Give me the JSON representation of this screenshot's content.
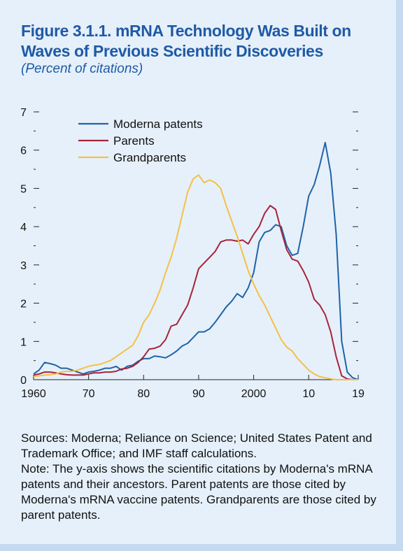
{
  "title": {
    "line1": "Figure 3.1.1.  mRNA Technology Was Built on",
    "line2": "Waves of Previous Scientific Discoveries"
  },
  "subtitle": "(Percent of citations)",
  "notes": {
    "sources": "Sources: Moderna; Reliance on Science; United States Patent and Trademark Office; and IMF staff calculations.",
    "note": "Note: The y-axis shows the scientific citations by Moderna's mRNA patents and their ancestors. Parent patents are those cited by Moderna's mRNA vaccine patents. Grandparents are those cited by parent patents."
  },
  "colors": {
    "moderna": "#1f63a8",
    "parents": "#a8243a",
    "grandparents": "#f4c048",
    "axis": "#222222",
    "title": "#1f5aa6"
  },
  "chart_data": {
    "type": "line",
    "title": "mRNA Technology Was Built on Waves of Previous Scientific Discoveries",
    "ylabel": "Percent of citations",
    "xlabel": "",
    "xlim": [
      1960,
      2019
    ],
    "ylim": [
      0,
      7
    ],
    "x_ticks": [
      {
        "value": 1960,
        "label": "1960"
      },
      {
        "value": 1970,
        "label": "70"
      },
      {
        "value": 1980,
        "label": "80"
      },
      {
        "value": 1990,
        "label": "90"
      },
      {
        "value": 2000,
        "label": "2000"
      },
      {
        "value": 2010,
        "label": "10"
      },
      {
        "value": 2019,
        "label": "19"
      }
    ],
    "y_ticks": [
      0,
      1,
      2,
      3,
      4,
      5,
      6,
      7
    ],
    "legend_position": "top-left",
    "series": [
      {
        "name": "Moderna patents",
        "color_key": "moderna",
        "points": [
          [
            1960,
            0.15
          ],
          [
            1961,
            0.25
          ],
          [
            1962,
            0.45
          ],
          [
            1963,
            0.42
          ],
          [
            1964,
            0.38
          ],
          [
            1965,
            0.3
          ],
          [
            1966,
            0.3
          ],
          [
            1967,
            0.25
          ],
          [
            1968,
            0.2
          ],
          [
            1969,
            0.15
          ],
          [
            1970,
            0.2
          ],
          [
            1971,
            0.22
          ],
          [
            1972,
            0.25
          ],
          [
            1973,
            0.3
          ],
          [
            1974,
            0.3
          ],
          [
            1975,
            0.35
          ],
          [
            1976,
            0.25
          ],
          [
            1977,
            0.35
          ],
          [
            1978,
            0.38
          ],
          [
            1979,
            0.48
          ],
          [
            1980,
            0.55
          ],
          [
            1981,
            0.55
          ],
          [
            1982,
            0.62
          ],
          [
            1983,
            0.6
          ],
          [
            1984,
            0.57
          ],
          [
            1985,
            0.65
          ],
          [
            1986,
            0.75
          ],
          [
            1987,
            0.88
          ],
          [
            1988,
            0.95
          ],
          [
            1989,
            1.1
          ],
          [
            1990,
            1.25
          ],
          [
            1991,
            1.25
          ],
          [
            1992,
            1.33
          ],
          [
            1993,
            1.5
          ],
          [
            1994,
            1.7
          ],
          [
            1995,
            1.9
          ],
          [
            1996,
            2.05
          ],
          [
            1997,
            2.25
          ],
          [
            1998,
            2.15
          ],
          [
            1999,
            2.4
          ],
          [
            2000,
            2.8
          ],
          [
            2001,
            3.6
          ],
          [
            2002,
            3.85
          ],
          [
            2003,
            3.9
          ],
          [
            2004,
            4.05
          ],
          [
            2005,
            4.0
          ],
          [
            2006,
            3.5
          ],
          [
            2007,
            3.25
          ],
          [
            2008,
            3.3
          ],
          [
            2009,
            4.0
          ],
          [
            2010,
            4.8
          ],
          [
            2011,
            5.1
          ],
          [
            2012,
            5.6
          ],
          [
            2013,
            6.2
          ],
          [
            2014,
            5.4
          ],
          [
            2015,
            3.8
          ],
          [
            2016,
            1.0
          ],
          [
            2017,
            0.2
          ],
          [
            2018,
            0.05
          ],
          [
            2019,
            0.0
          ]
        ]
      },
      {
        "name": "Parents",
        "color_key": "parents",
        "points": [
          [
            1960,
            0.12
          ],
          [
            1961,
            0.15
          ],
          [
            1962,
            0.2
          ],
          [
            1963,
            0.2
          ],
          [
            1964,
            0.18
          ],
          [
            1965,
            0.15
          ],
          [
            1966,
            0.13
          ],
          [
            1967,
            0.12
          ],
          [
            1968,
            0.12
          ],
          [
            1969,
            0.12
          ],
          [
            1970,
            0.15
          ],
          [
            1971,
            0.18
          ],
          [
            1972,
            0.18
          ],
          [
            1973,
            0.2
          ],
          [
            1974,
            0.2
          ],
          [
            1975,
            0.22
          ],
          [
            1976,
            0.28
          ],
          [
            1977,
            0.3
          ],
          [
            1978,
            0.35
          ],
          [
            1979,
            0.45
          ],
          [
            1980,
            0.6
          ],
          [
            1981,
            0.8
          ],
          [
            1982,
            0.82
          ],
          [
            1983,
            0.88
          ],
          [
            1984,
            1.05
          ],
          [
            1985,
            1.4
          ],
          [
            1986,
            1.45
          ],
          [
            1987,
            1.7
          ],
          [
            1988,
            1.95
          ],
          [
            1989,
            2.4
          ],
          [
            1990,
            2.9
          ],
          [
            1991,
            3.05
          ],
          [
            1992,
            3.2
          ],
          [
            1993,
            3.35
          ],
          [
            1994,
            3.6
          ],
          [
            1995,
            3.65
          ],
          [
            1996,
            3.65
          ],
          [
            1997,
            3.62
          ],
          [
            1998,
            3.65
          ],
          [
            1999,
            3.55
          ],
          [
            2000,
            3.8
          ],
          [
            2001,
            4.0
          ],
          [
            2002,
            4.35
          ],
          [
            2003,
            4.55
          ],
          [
            2004,
            4.45
          ],
          [
            2005,
            3.9
          ],
          [
            2006,
            3.4
          ],
          [
            2007,
            3.15
          ],
          [
            2008,
            3.1
          ],
          [
            2009,
            2.85
          ],
          [
            2010,
            2.55
          ],
          [
            2011,
            2.1
          ],
          [
            2012,
            1.95
          ],
          [
            2013,
            1.7
          ],
          [
            2014,
            1.25
          ],
          [
            2015,
            0.6
          ],
          [
            2016,
            0.1
          ],
          [
            2017,
            0.02
          ],
          [
            2018,
            0.0
          ],
          [
            2019,
            0.0
          ]
        ]
      },
      {
        "name": "Grandparents",
        "color_key": "grandparents",
        "points": [
          [
            1960,
            0.08
          ],
          [
            1961,
            0.1
          ],
          [
            1962,
            0.12
          ],
          [
            1963,
            0.13
          ],
          [
            1964,
            0.15
          ],
          [
            1965,
            0.2
          ],
          [
            1966,
            0.22
          ],
          [
            1967,
            0.22
          ],
          [
            1968,
            0.25
          ],
          [
            1969,
            0.3
          ],
          [
            1970,
            0.35
          ],
          [
            1971,
            0.38
          ],
          [
            1972,
            0.4
          ],
          [
            1973,
            0.45
          ],
          [
            1974,
            0.5
          ],
          [
            1975,
            0.6
          ],
          [
            1976,
            0.7
          ],
          [
            1977,
            0.8
          ],
          [
            1978,
            0.9
          ],
          [
            1979,
            1.15
          ],
          [
            1980,
            1.5
          ],
          [
            1981,
            1.7
          ],
          [
            1982,
            2.0
          ],
          [
            1983,
            2.35
          ],
          [
            1984,
            2.8
          ],
          [
            1985,
            3.2
          ],
          [
            1986,
            3.7
          ],
          [
            1987,
            4.3
          ],
          [
            1988,
            4.9
          ],
          [
            1989,
            5.25
          ],
          [
            1990,
            5.35
          ],
          [
            1991,
            5.15
          ],
          [
            1992,
            5.22
          ],
          [
            1993,
            5.15
          ],
          [
            1994,
            5.0
          ],
          [
            1995,
            4.55
          ],
          [
            1996,
            4.15
          ],
          [
            1997,
            3.75
          ],
          [
            1998,
            3.3
          ],
          [
            1999,
            2.85
          ],
          [
            2000,
            2.5
          ],
          [
            2001,
            2.2
          ],
          [
            2002,
            1.95
          ],
          [
            2003,
            1.65
          ],
          [
            2004,
            1.35
          ],
          [
            2005,
            1.05
          ],
          [
            2006,
            0.85
          ],
          [
            2007,
            0.75
          ],
          [
            2008,
            0.55
          ],
          [
            2009,
            0.4
          ],
          [
            2010,
            0.25
          ],
          [
            2011,
            0.15
          ],
          [
            2012,
            0.08
          ],
          [
            2013,
            0.05
          ],
          [
            2014,
            0.02
          ],
          [
            2015,
            0.0
          ],
          [
            2016,
            0.0
          ],
          [
            2017,
            0.0
          ],
          [
            2018,
            0.0
          ],
          [
            2019,
            0.0
          ]
        ]
      }
    ]
  }
}
